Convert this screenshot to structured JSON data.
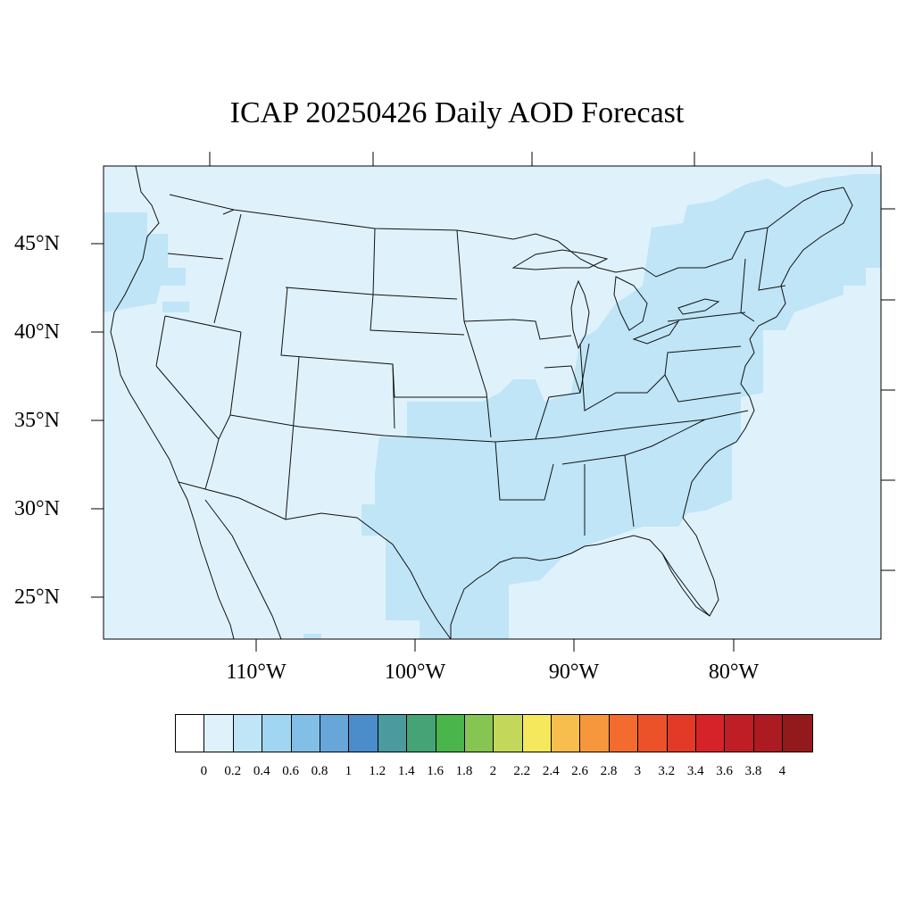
{
  "title": "ICAP 20250426 Daily AOD Forecast",
  "lat_labels": [
    "45°N",
    "40°N",
    "35°N",
    "30°N",
    "25°N"
  ],
  "lon_labels": [
    "110°W",
    "100°W",
    "90°W",
    "80°W"
  ],
  "colorbar": {
    "labels": [
      "0",
      "0.2",
      "0.4",
      "0.6",
      "0.8",
      "1",
      "1.2",
      "1.4",
      "1.6",
      "1.8",
      "2",
      "2.2",
      "2.4",
      "2.6",
      "2.8",
      "3",
      "3.2",
      "3.4",
      "3.6",
      "3.8",
      "4"
    ],
    "colors": [
      "#ffffff",
      "#dff2fb",
      "#bfe5f7",
      "#a0d6f2",
      "#82bfe6",
      "#67a6d9",
      "#4b8dca",
      "#4a9a9e",
      "#44a475",
      "#4ab54b",
      "#86c551",
      "#c3d75a",
      "#f6e85c",
      "#f8be4d",
      "#f6973d",
      "#f36b2e",
      "#ec5229",
      "#e13a27",
      "#d42429",
      "#bf1e26",
      "#ad1b22",
      "#931a1c"
    ]
  },
  "map_colors": {
    "background": "#dff2fb",
    "higher": "#bfe5f7"
  }
}
